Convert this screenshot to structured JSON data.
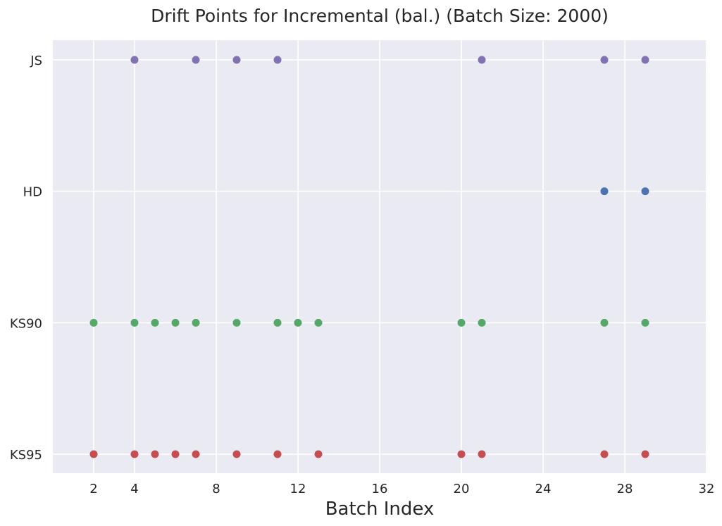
{
  "chart_data": {
    "type": "scatter",
    "title": "Drift Points for Incremental (bal.) (Batch Size: 2000)",
    "xlabel": "Batch Index",
    "ylabel": "",
    "xlim": [
      0,
      32
    ],
    "xticks": [
      "2",
      "4",
      "8",
      "12",
      "16",
      "20",
      "24",
      "28",
      "32"
    ],
    "categories": [
      "KS95",
      "KS90",
      "HD",
      "JS"
    ],
    "grid": true,
    "series": [
      {
        "category": "KS95",
        "color": "#c44e52",
        "x": [
          2,
          4,
          5,
          6,
          7,
          9,
          11,
          13,
          20,
          21,
          27,
          29
        ]
      },
      {
        "category": "KS90",
        "color": "#55a868",
        "x": [
          2,
          4,
          5,
          6,
          7,
          9,
          11,
          12,
          13,
          20,
          21,
          27,
          29
        ]
      },
      {
        "category": "HD",
        "color": "#4c72b0",
        "x": [
          27,
          29
        ]
      },
      {
        "category": "JS",
        "color": "#8172b2",
        "x": [
          4,
          7,
          9,
          11,
          21,
          27,
          29
        ]
      }
    ]
  }
}
